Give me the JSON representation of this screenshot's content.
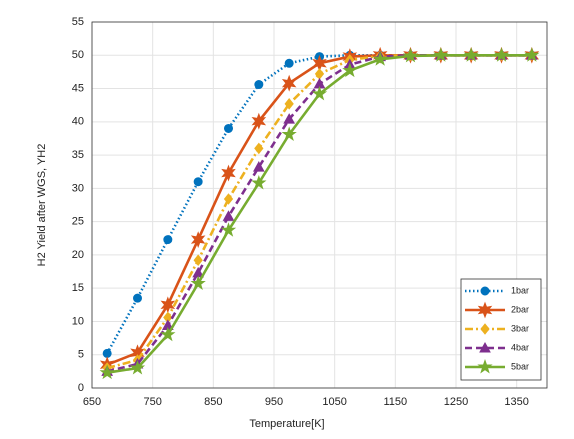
{
  "chart_data": {
    "type": "line",
    "xlabel": "Temperature[K]",
    "ylabel": "H2 Yield after WGS, YH2",
    "x": [
      675,
      725,
      775,
      825,
      875,
      925,
      975,
      1025,
      1075,
      1125,
      1175,
      1225,
      1275,
      1325,
      1375
    ],
    "series": [
      {
        "name": "1bar",
        "color": "#0072bd",
        "dash": "dotted",
        "marker": "circle",
        "values": [
          5.2,
          13.5,
          22.3,
          31,
          39,
          45.6,
          48.8,
          49.8,
          50,
          50,
          50,
          50,
          50,
          50,
          50
        ]
      },
      {
        "name": "2bar",
        "color": "#d95319",
        "dash": "solid",
        "marker": "hexagram",
        "values": [
          3.5,
          5.3,
          12.5,
          22.3,
          32.3,
          40.1,
          45.8,
          48.8,
          49.8,
          50,
          50,
          50,
          50,
          50,
          50
        ]
      },
      {
        "name": "3bar",
        "color": "#edb120",
        "dash": "dashdot",
        "marker": "diamond",
        "values": [
          3,
          4.2,
          10.6,
          19.2,
          28.4,
          36,
          42.7,
          47.2,
          49.3,
          49.9,
          50,
          50,
          50,
          50,
          50
        ]
      },
      {
        "name": "4bar",
        "color": "#7e2f8e",
        "dash": "dashed",
        "marker": "triangle",
        "values": [
          2.5,
          3.6,
          9.4,
          17.3,
          25.8,
          33.2,
          40.4,
          45.7,
          48.6,
          49.8,
          50,
          50,
          50,
          50,
          50
        ]
      },
      {
        "name": "5bar",
        "color": "#77ac30",
        "dash": "solid",
        "marker": "pentagram",
        "values": [
          2.3,
          3,
          8,
          15.7,
          23.7,
          30.8,
          38.1,
          44.2,
          47.7,
          49.4,
          49.9,
          50,
          50,
          50,
          50
        ]
      }
    ],
    "xlim": [
      650,
      1400
    ],
    "xticks": [
      650,
      750,
      850,
      950,
      1050,
      1150,
      1250,
      1350
    ],
    "ylim": [
      0,
      55
    ],
    "yticks": [
      0,
      5,
      10,
      15,
      20,
      25,
      30,
      35,
      40,
      45,
      50,
      55
    ],
    "grid": true,
    "legend": "lower right"
  }
}
